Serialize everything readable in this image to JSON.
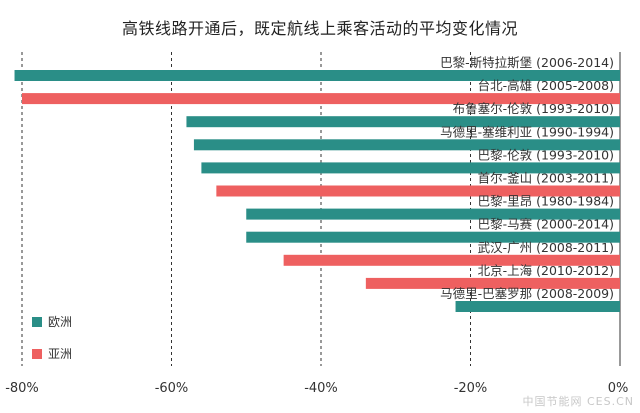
{
  "chart_data": {
    "type": "bar",
    "orientation": "horizontal",
    "title": "高铁线路开通后，既定航线上乘客活动的平均变化情况",
    "categories": [
      "巴黎-斯特拉斯堡 (2006-2014)",
      "台北-高雄 (2005-2008)",
      "布鲁塞尔-伦敦 (1993-2010)",
      "马德里-塞维利亚 (1990-1994)",
      "巴黎-伦敦 (1993-2010)",
      "首尔-釜山 (2003-2011)",
      "巴黎-里昂 (1980-1984)",
      "巴黎-马赛 (2000-2014)",
      "武汉-广州 (2008-2011)",
      "北京-上海 (2010-2012)",
      "马德里-巴塞罗那 (2008-2009)"
    ],
    "values": [
      -81,
      -80,
      -58,
      -57,
      -56,
      -54,
      -50,
      -50,
      -45,
      -34,
      -22
    ],
    "regions": [
      "欧洲",
      "亚洲",
      "欧洲",
      "欧洲",
      "欧洲",
      "亚洲",
      "欧洲",
      "欧洲",
      "亚洲",
      "亚洲",
      "欧洲"
    ],
    "legend": [
      {
        "name": "欧洲",
        "color": "#2a8e87"
      },
      {
        "name": "亚洲",
        "color": "#ee6060"
      }
    ],
    "xlim": [
      -82,
      0
    ],
    "xticks": [
      -80,
      -60,
      -40,
      -20,
      0
    ],
    "xtick_labels": [
      "-80%",
      "-60%",
      "-40%",
      "-20%",
      "0%"
    ],
    "legend_position": "bottom-left",
    "grid": "vertical dashed"
  },
  "watermark": "中国节能网 CES.CN"
}
